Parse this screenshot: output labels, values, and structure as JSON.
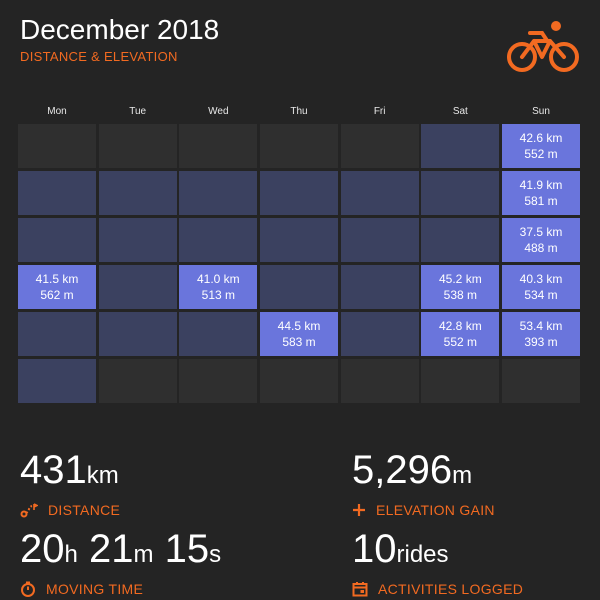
{
  "header": {
    "title": "December 2018",
    "subtitle": "DISTANCE & ELEVATION",
    "logo_icon": "cyclist-icon"
  },
  "accent": "#f26a21",
  "colors": {
    "ride_day": "#6a75dc",
    "no_ride_day": "#3b4160",
    "outside_month": "#2f2f2f"
  },
  "days": [
    "Mon",
    "Tue",
    "Wed",
    "Thu",
    "Fri",
    "Sat",
    "Sun"
  ],
  "weeks": [
    [
      {
        "state": "empty"
      },
      {
        "state": "empty"
      },
      {
        "state": "empty"
      },
      {
        "state": "empty"
      },
      {
        "state": "empty"
      },
      {
        "state": "norid"
      },
      {
        "state": "ride",
        "km": "42.6 km",
        "m": "552 m"
      }
    ],
    [
      {
        "state": "norid"
      },
      {
        "state": "norid"
      },
      {
        "state": "norid"
      },
      {
        "state": "norid"
      },
      {
        "state": "norid"
      },
      {
        "state": "norid"
      },
      {
        "state": "ride",
        "km": "41.9 km",
        "m": "581 m"
      }
    ],
    [
      {
        "state": "norid"
      },
      {
        "state": "norid"
      },
      {
        "state": "norid"
      },
      {
        "state": "norid"
      },
      {
        "state": "norid"
      },
      {
        "state": "norid"
      },
      {
        "state": "ride",
        "km": "37.5 km",
        "m": "488 m"
      }
    ],
    [
      {
        "state": "ride",
        "km": "41.5 km",
        "m": "562 m"
      },
      {
        "state": "norid"
      },
      {
        "state": "ride",
        "km": "41.0 km",
        "m": "513 m"
      },
      {
        "state": "norid"
      },
      {
        "state": "norid"
      },
      {
        "state": "ride",
        "km": "45.2 km",
        "m": "538 m"
      },
      {
        "state": "ride",
        "km": "40.3 km",
        "m": "534 m"
      }
    ],
    [
      {
        "state": "norid"
      },
      {
        "state": "norid"
      },
      {
        "state": "norid"
      },
      {
        "state": "ride",
        "km": "44.5 km",
        "m": "583 m"
      },
      {
        "state": "norid"
      },
      {
        "state": "ride",
        "km": "42.8 km",
        "m": "552 m"
      },
      {
        "state": "ride",
        "km": "53.4 km",
        "m": "393 m"
      }
    ],
    [
      {
        "state": "norid"
      },
      {
        "state": "empty"
      },
      {
        "state": "empty"
      },
      {
        "state": "empty"
      },
      {
        "state": "empty"
      },
      {
        "state": "empty"
      },
      {
        "state": "empty"
      }
    ]
  ],
  "stats": {
    "distance": {
      "value": "431",
      "unit": "km",
      "label": "DISTANCE",
      "icon": "route-icon"
    },
    "elevation": {
      "value": "5,296",
      "unit": "m",
      "label": "ELEVATION GAIN",
      "icon": "plus-icon"
    },
    "time": {
      "h": "20",
      "h_unit": "h",
      "m": "21",
      "m_unit": "m",
      "s": "15",
      "s_unit": "s",
      "label": "MOVING TIME",
      "icon": "stopwatch-icon"
    },
    "activities": {
      "value": "10",
      "unit": "rides",
      "label": "ACTIVITIES LOGGED",
      "icon": "calendar-icon"
    }
  }
}
